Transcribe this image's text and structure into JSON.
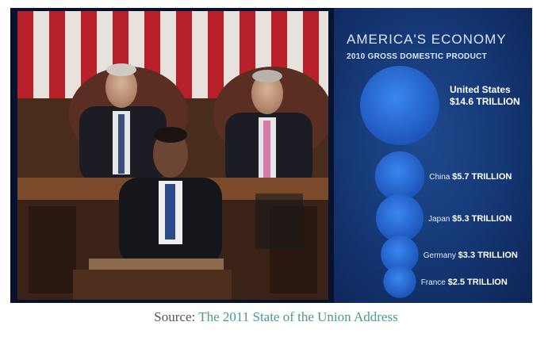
{
  "chart_data": {
    "type": "bubble",
    "title": "AMERICA'S ECONOMY",
    "subtitle": "2010 GROSS DOMESTIC PRODUCT",
    "categories": [
      "United States",
      "China",
      "Japan",
      "Germany",
      "France"
    ],
    "values": [
      14.6,
      5.7,
      5.3,
      3.3,
      2.5
    ],
    "value_labels": [
      "$14.6 TRILLION",
      "$5.7 TRILLION",
      "$5.3 TRILLION",
      "$3.3 TRILLION",
      "$2.5 TRILLION"
    ]
  },
  "caption": {
    "prefix": "Source:",
    "link_text": "The 2011 State of the Union Address"
  },
  "colors": {
    "panel": "#163a78",
    "bubble": "#2e6fd6",
    "link": "#4a9a8c"
  }
}
